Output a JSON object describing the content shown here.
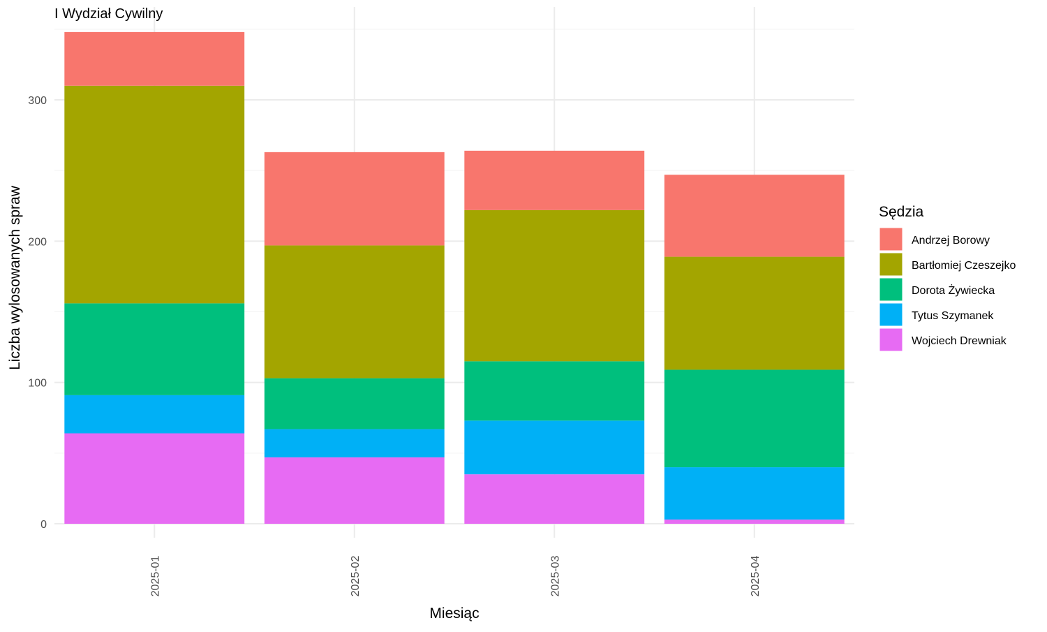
{
  "chart_data": {
    "type": "bar",
    "stacked": true,
    "title": "I Wydział Cywilny",
    "xlabel": "Miesiąc",
    "ylabel": "Liczba wylosowanych spraw",
    "categories": [
      "2025-01",
      "2025-02",
      "2025-03",
      "2025-04"
    ],
    "ylim": [
      0,
      365
    ],
    "yticks": [
      0,
      100,
      200,
      300
    ],
    "grid": true,
    "legend_title": "Sędzia",
    "legend_position": "right",
    "series": [
      {
        "name": "Wojciech Drewniak",
        "color": "#E76BF3",
        "values": [
          64,
          47,
          35,
          3
        ]
      },
      {
        "name": "Tytus Szymanek",
        "color": "#00B0F6",
        "values": [
          27,
          20,
          38,
          37
        ]
      },
      {
        "name": "Dorota Żywiecka",
        "color": "#00BF7D",
        "values": [
          65,
          36,
          42,
          69
        ]
      },
      {
        "name": "Bartłomiej Czeszejko",
        "color": "#A3A500",
        "values": [
          154,
          94,
          107,
          80
        ]
      },
      {
        "name": "Andrzej Borowy",
        "color": "#F8766D",
        "values": [
          38,
          66,
          42,
          58
        ]
      }
    ],
    "legend_order": [
      "Andrzej Borowy",
      "Bartłomiej Czeszejko",
      "Dorota Żywiecka",
      "Tytus Szymanek",
      "Wojciech Drewniak"
    ]
  }
}
